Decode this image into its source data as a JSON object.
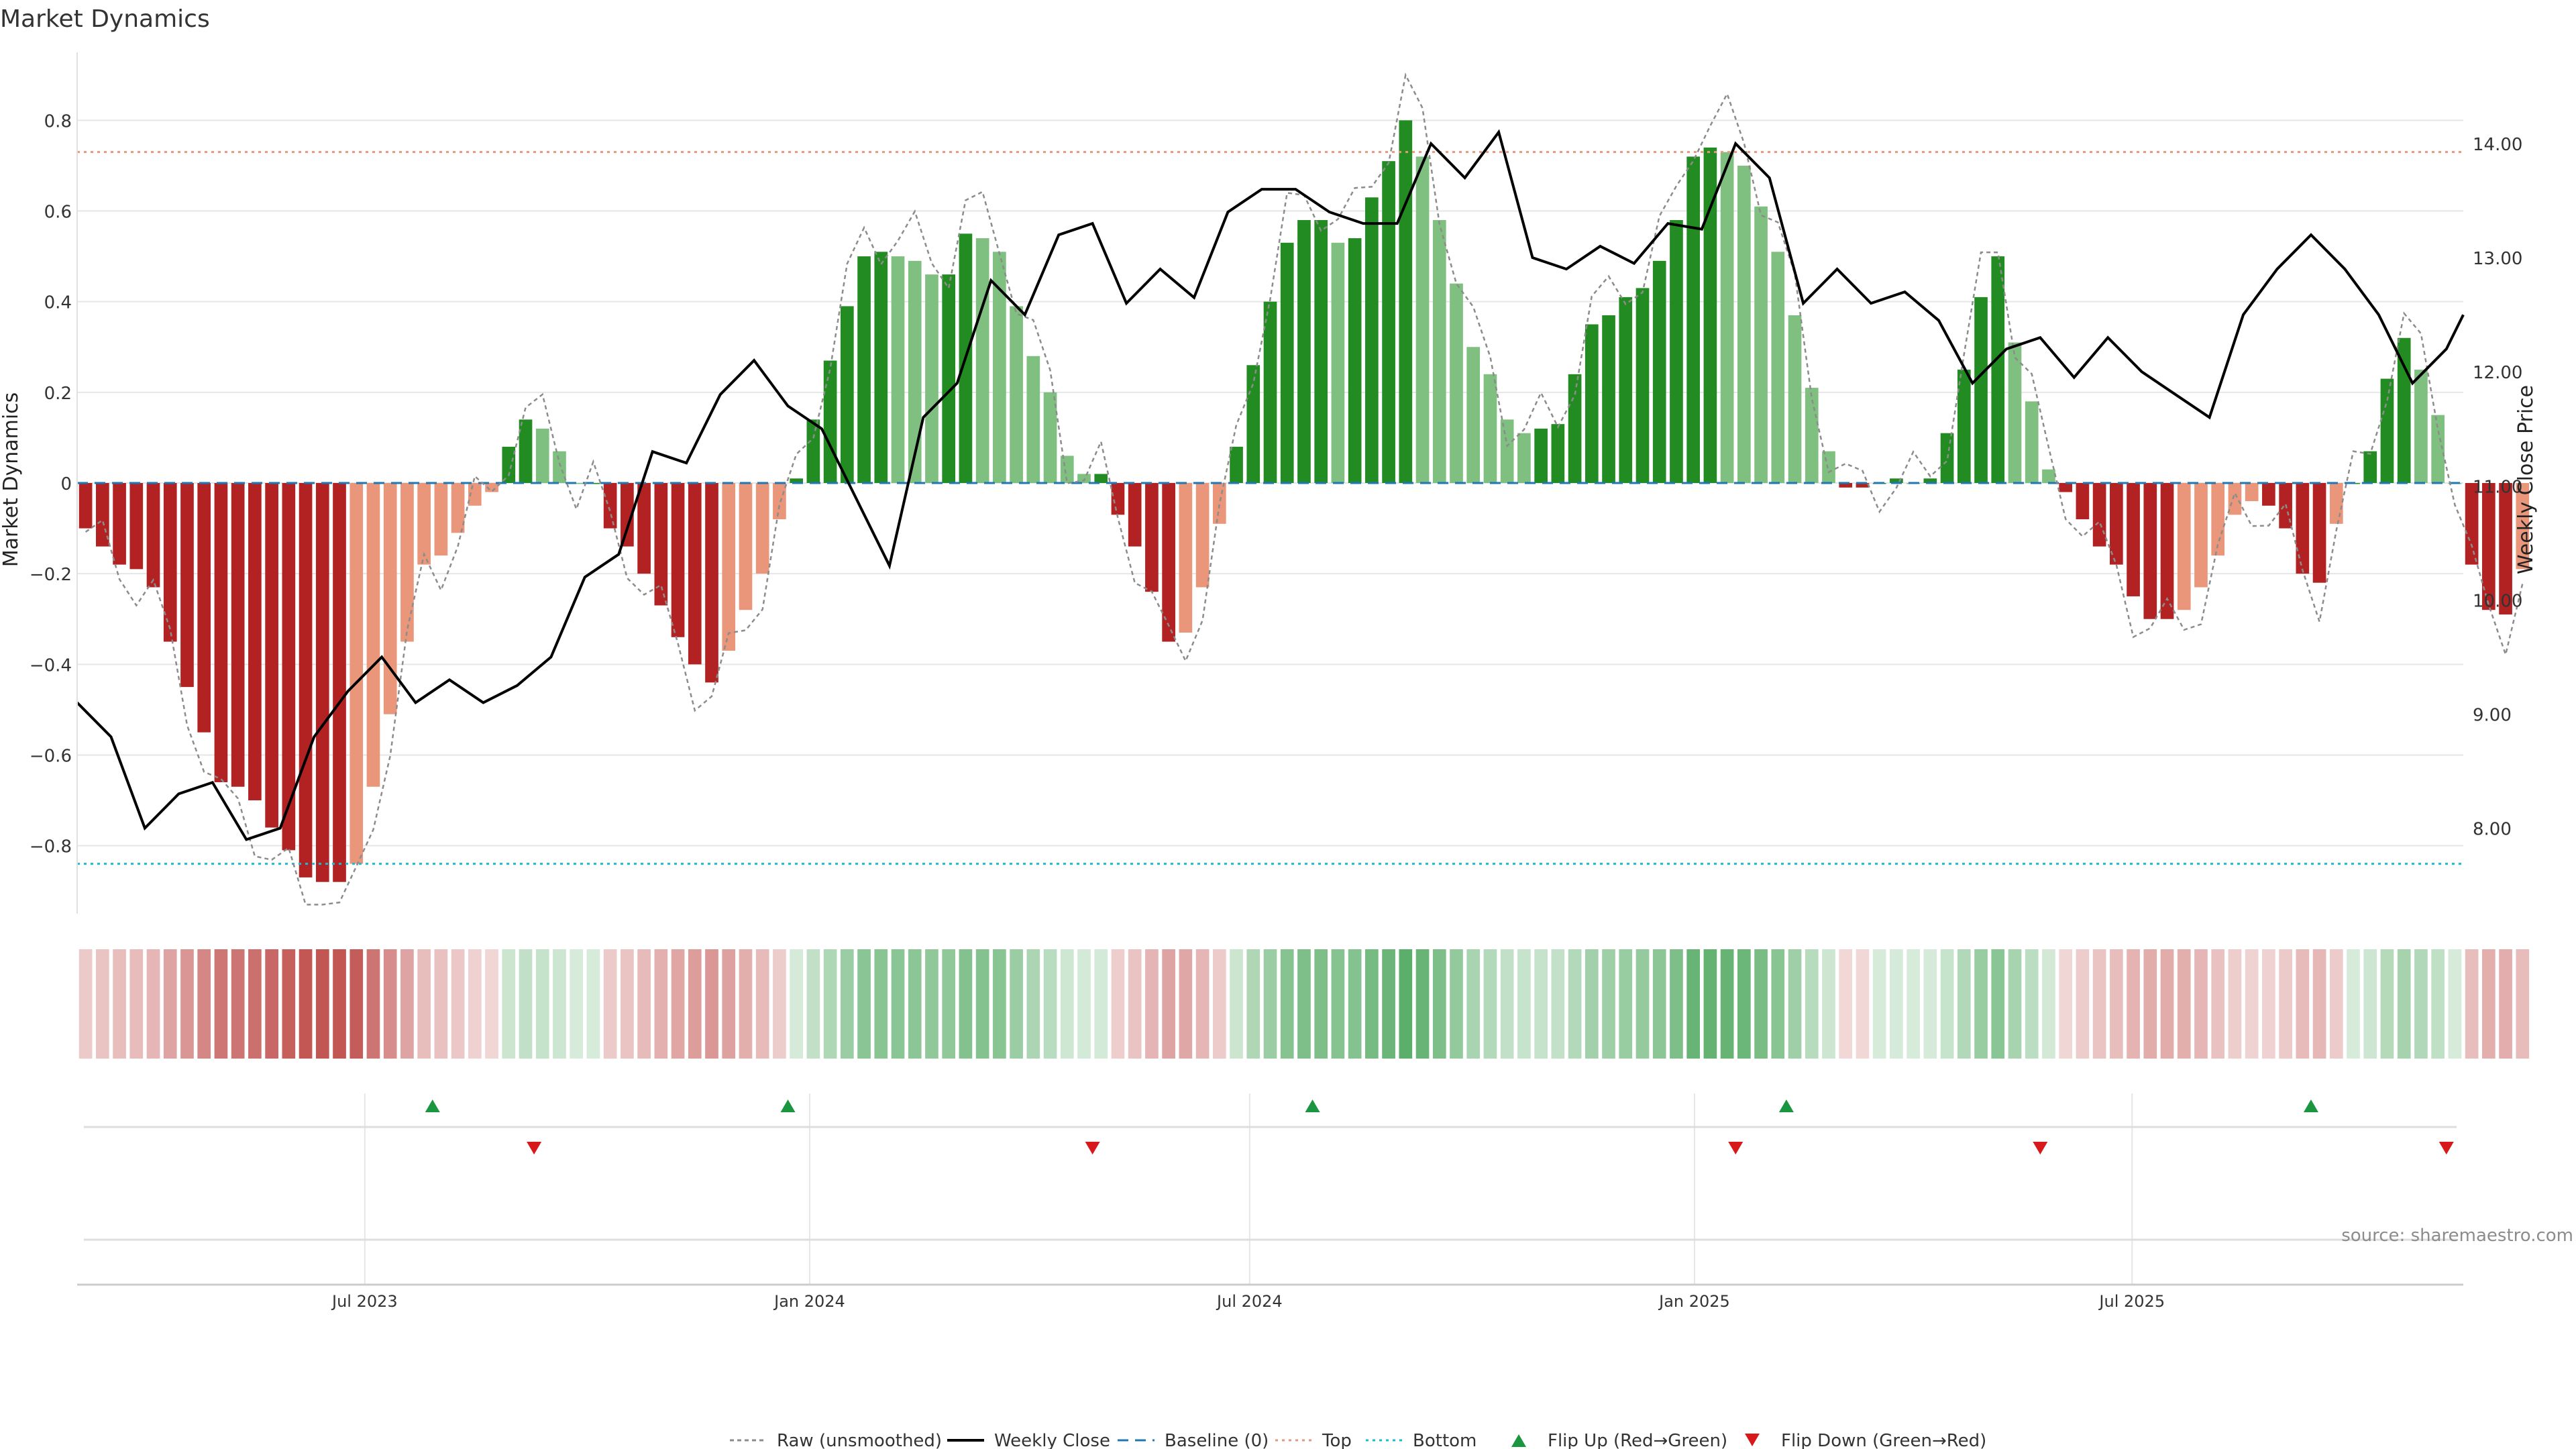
{
  "page": {
    "title": "Market Dynamics",
    "source": "source: sharemaestro.com"
  },
  "colors": {
    "strong_green": "#228b22",
    "light_green": "#7fbf7f",
    "strong_red": "#b22222",
    "light_red": "#e9967a",
    "close_line": "#000000",
    "raw_line": "#8c8c8c",
    "baseline": "#1f77b4",
    "top": "#e9967a",
    "bottom": "#17becf",
    "flip_up": "#1a9641",
    "flip_down": "#d7191c",
    "grid": "#e6e6e6"
  },
  "legend": [
    {
      "label": "Raw (unsmoothed)",
      "style": "raw"
    },
    {
      "label": "Weekly Close",
      "style": "close"
    },
    {
      "label": "Baseline (0)",
      "style": "baseline"
    },
    {
      "label": "Top",
      "style": "top"
    },
    {
      "label": "Bottom",
      "style": "bottom"
    },
    {
      "label": "Flip Up (Red→Green)",
      "style": "flip_up"
    },
    {
      "label": "Flip Down (Green→Red)",
      "style": "flip_down"
    }
  ],
  "chart_data": {
    "type": "bar",
    "title": "Market Dynamics",
    "ylabel": "Market Dynamics",
    "y2label": "Weekly Close Price",
    "ylim": [
      -0.95,
      0.95
    ],
    "y2lim": [
      7.25,
      14.8
    ],
    "yticks": [
      -0.8,
      -0.6,
      -0.4,
      -0.2,
      0,
      0.2,
      0.4,
      0.6,
      0.8
    ],
    "ytick_labels": [
      "−0.8",
      "−0.6",
      "−0.4",
      "−0.2",
      "0",
      "0.2",
      "0.4",
      "0.6",
      "0.8"
    ],
    "y2ticks": [
      8.0,
      9.0,
      10.0,
      11.0,
      12.0,
      13.0,
      14.0
    ],
    "y2tick_labels": [
      "8.00",
      "9.00",
      "10.00",
      "11.00",
      "12.00",
      "13.00",
      "14.00"
    ],
    "top_level": 0.73,
    "bottom_level": -0.84,
    "x_start": "2023-03-04",
    "x_end": "2025-11-15",
    "xticks": [
      "2023-07-01",
      "2024-01-01",
      "2024-07-01",
      "2025-01-01",
      "2025-07-01"
    ],
    "xtick_labels": [
      "Jul 2023",
      "Jan 2024",
      "Jul 2024",
      "Jan 2025",
      "Jul 2025"
    ],
    "grid": true,
    "legend_position": "bottom",
    "weeks_start": "2023-03-04",
    "dynamics": [
      -0.1,
      -0.14,
      -0.18,
      -0.19,
      -0.23,
      -0.35,
      -0.45,
      -0.55,
      -0.66,
      -0.67,
      -0.7,
      -0.76,
      -0.81,
      -0.87,
      -0.88,
      -0.88,
      -0.84,
      -0.67,
      -0.51,
      -0.35,
      -0.18,
      -0.16,
      -0.11,
      -0.05,
      -0.02,
      0.08,
      0.14,
      0.12,
      0.07,
      0,
      0,
      -0.1,
      -0.14,
      -0.2,
      -0.27,
      -0.34,
      -0.4,
      -0.44,
      -0.37,
      -0.28,
      -0.2,
      -0.08,
      0.01,
      0.14,
      0.27,
      0.39,
      0.5,
      0.51,
      0.5,
      0.49,
      0.46,
      0.46,
      0.55,
      0.54,
      0.51,
      0.39,
      0.28,
      0.2,
      0.06,
      0.02,
      0.02,
      -0.07,
      -0.14,
      -0.24,
      -0.35,
      -0.33,
      -0.23,
      -0.09,
      0.08,
      0.26,
      0.4,
      0.53,
      0.58,
      0.58,
      0.53,
      0.54,
      0.63,
      0.71,
      0.8,
      0.72,
      0.58,
      0.44,
      0.3,
      0.24,
      0.14,
      0.11,
      0.12,
      0.13,
      0.24,
      0.35,
      0.37,
      0.41,
      0.43,
      0.49,
      0.58,
      0.72,
      0.74,
      0.73,
      0.7,
      0.61,
      0.51,
      0.37,
      0.21,
      0.07,
      -0.01,
      -0.01,
      0,
      0.01,
      0,
      0.01,
      0.11,
      0.25,
      0.41,
      0.5,
      0.31,
      0.18,
      0.03,
      -0.02,
      -0.08,
      -0.14,
      -0.18,
      -0.25,
      -0.3,
      -0.3,
      -0.28,
      -0.23,
      -0.16,
      -0.07,
      -0.04,
      -0.05,
      -0.1,
      -0.2,
      -0.22,
      -0.09,
      0,
      0.07,
      0.23,
      0.32,
      0.25,
      0.15,
      0,
      -0.18,
      -0.28,
      -0.29,
      -0.19
    ],
    "flip_up_dates": [
      "2023-07-29",
      "2023-12-23",
      "2024-07-27",
      "2025-02-08",
      "2025-09-13"
    ],
    "flip_down_dates": [
      "2023-09-09",
      "2024-04-27",
      "2025-01-18",
      "2025-05-24",
      "2025-11-08"
    ],
    "series": [
      {
        "name": "Weekly Close",
        "dates": [
          "2023-03-04",
          "2023-03-18",
          "2023-04-01",
          "2023-04-15",
          "2023-04-29",
          "2023-05-13",
          "2023-05-27",
          "2023-06-10",
          "2023-06-24",
          "2023-07-08",
          "2023-07-22",
          "2023-08-05",
          "2023-08-19",
          "2023-09-02",
          "2023-09-16",
          "2023-09-30",
          "2023-10-14",
          "2023-10-28",
          "2023-11-11",
          "2023-11-25",
          "2023-12-09",
          "2023-12-23",
          "2024-01-06",
          "2024-01-20",
          "2024-02-03",
          "2024-02-17",
          "2024-03-02",
          "2024-03-16",
          "2024-03-30",
          "2024-04-13",
          "2024-04-27",
          "2024-05-11",
          "2024-05-25",
          "2024-06-08",
          "2024-06-22",
          "2024-07-06",
          "2024-07-20",
          "2024-08-03",
          "2024-08-17",
          "2024-08-31",
          "2024-09-14",
          "2024-09-28",
          "2024-10-12",
          "2024-10-26",
          "2024-11-09",
          "2024-11-23",
          "2024-12-07",
          "2024-12-21",
          "2025-01-04",
          "2025-01-18",
          "2025-02-01",
          "2025-02-15",
          "2025-03-01",
          "2025-03-15",
          "2025-03-29",
          "2025-04-12",
          "2025-04-26",
          "2025-05-10",
          "2025-05-24",
          "2025-06-07",
          "2025-06-21",
          "2025-07-05",
          "2025-07-19",
          "2025-08-02",
          "2025-08-16",
          "2025-08-30",
          "2025-09-13",
          "2025-09-27",
          "2025-10-11",
          "2025-10-25",
          "2025-11-08",
          "2025-11-15"
        ],
        "values": [
          9.1,
          8.8,
          8.0,
          8.3,
          8.4,
          7.9,
          8.0,
          8.8,
          9.2,
          9.5,
          9.1,
          9.3,
          9.1,
          9.25,
          9.5,
          10.2,
          10.4,
          11.3,
          11.2,
          11.8,
          12.1,
          11.7,
          11.5,
          10.9,
          10.3,
          11.6,
          11.9,
          12.8,
          12.5,
          13.2,
          13.3,
          12.6,
          12.9,
          12.65,
          13.4,
          13.6,
          13.6,
          13.4,
          13.3,
          13.3,
          14.0,
          13.7,
          14.1,
          13.0,
          12.9,
          13.1,
          12.95,
          13.3,
          13.25,
          14.0,
          13.7,
          12.6,
          12.9,
          12.6,
          12.7,
          12.45,
          11.9,
          12.2,
          12.3,
          11.95,
          12.3,
          12.0,
          11.8,
          11.6,
          12.5,
          12.9,
          13.2,
          12.9,
          12.5,
          11.9,
          12.2,
          12.5
        ],
        "axis": "right"
      }
    ]
  }
}
